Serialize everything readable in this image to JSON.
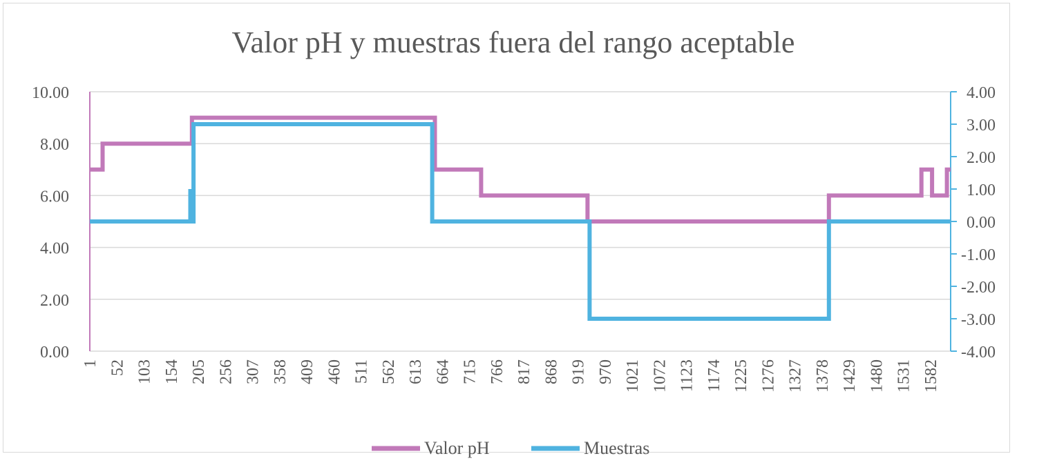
{
  "chart_data": {
    "type": "line",
    "title": "Valor pH y muestras fuera del rango aceptable",
    "x_range": [
      1,
      1620
    ],
    "x_tick_labels": [
      "1",
      "52",
      "103",
      "154",
      "205",
      "256",
      "307",
      "358",
      "409",
      "460",
      "511",
      "562",
      "613",
      "664",
      "715",
      "766",
      "817",
      "868",
      "919",
      "970",
      "1021",
      "1072",
      "1123",
      "1174",
      "1225",
      "1276",
      "1327",
      "1378",
      "1429",
      "1480",
      "1531",
      "1582"
    ],
    "y_left": {
      "range": [
        0,
        10
      ],
      "ticks": [
        "0.00",
        "2.00",
        "4.00",
        "6.00",
        "8.00",
        "10.00"
      ],
      "tick_values": [
        0,
        2,
        4,
        6,
        8,
        10
      ]
    },
    "y_right": {
      "range": [
        -4,
        4
      ],
      "ticks": [
        "-4.00",
        "-3.00",
        "-2.00",
        "-1.00",
        "0.00",
        "1.00",
        "2.00",
        "3.00",
        "4.00"
      ],
      "tick_values": [
        -4,
        -3,
        -2,
        -1,
        0,
        1,
        2,
        3,
        4
      ]
    },
    "grid": true,
    "legend_position": "bottom",
    "series": [
      {
        "name": "Valor pH",
        "axis": "left",
        "color": "#c179b9",
        "points": [
          [
            1,
            7
          ],
          [
            25,
            7
          ],
          [
            25,
            8
          ],
          [
            193,
            8
          ],
          [
            193,
            9
          ],
          [
            650,
            9
          ],
          [
            650,
            7
          ],
          [
            737,
            7
          ],
          [
            737,
            6
          ],
          [
            937,
            6
          ],
          [
            937,
            5
          ],
          [
            1391,
            5
          ],
          [
            1391,
            6
          ],
          [
            1565,
            6
          ],
          [
            1565,
            7
          ],
          [
            1585,
            7
          ],
          [
            1585,
            6
          ],
          [
            1613,
            6
          ],
          [
            1613,
            7
          ],
          [
            1633,
            7
          ]
        ]
      },
      {
        "name": "Muestras",
        "axis": "right",
        "color": "#4fb3e0",
        "points": [
          [
            1,
            0
          ],
          [
            190,
            0
          ],
          [
            190,
            1
          ],
          [
            193,
            0
          ],
          [
            196,
            0
          ],
          [
            196,
            3
          ],
          [
            645,
            3
          ],
          [
            645,
            0
          ],
          [
            941,
            0
          ],
          [
            941,
            -3
          ],
          [
            1391,
            -3
          ],
          [
            1391,
            0
          ],
          [
            1633,
            0
          ]
        ]
      }
    ],
    "legend": [
      "Valor pH",
      "Muestras"
    ]
  }
}
